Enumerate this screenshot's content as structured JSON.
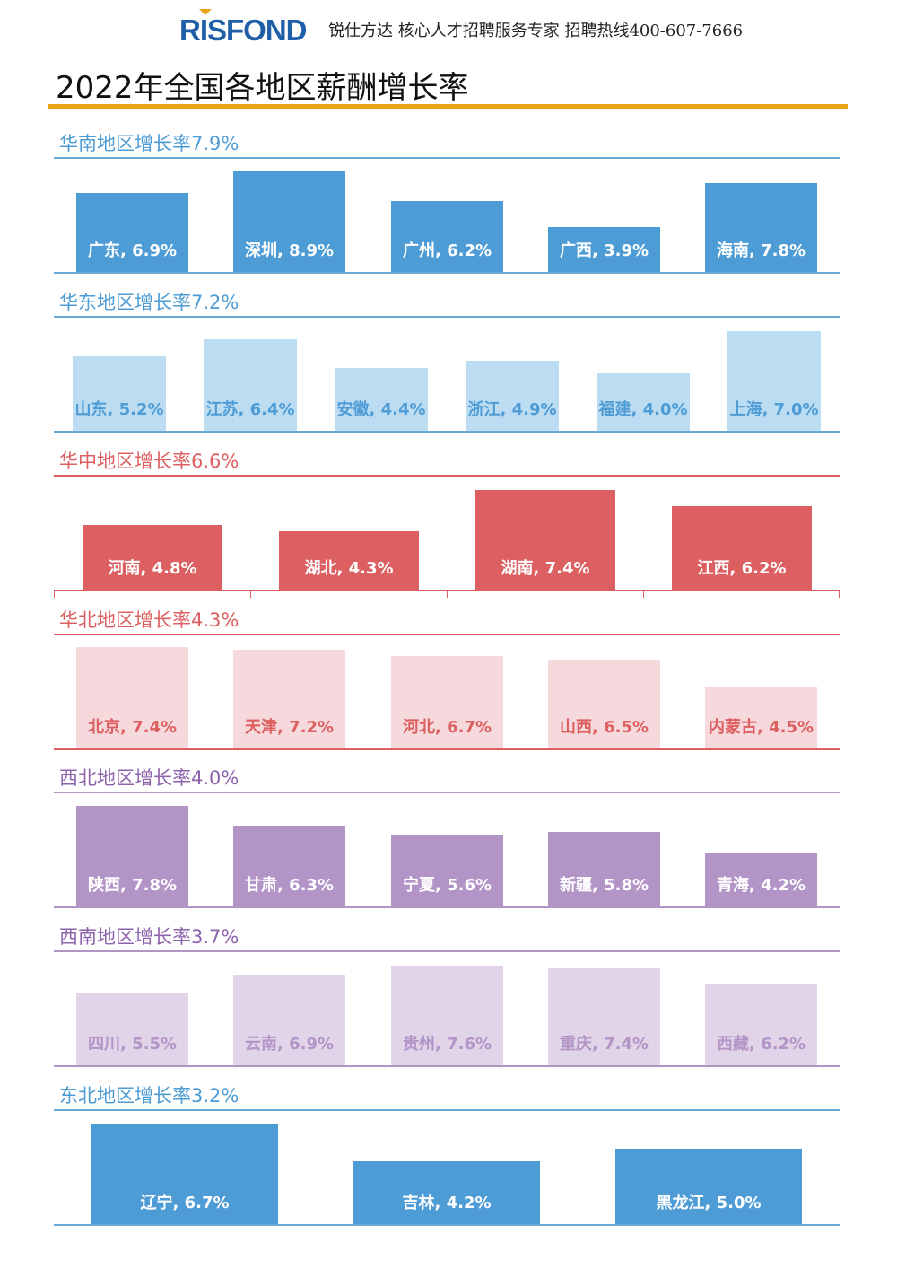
{
  "header": {
    "logo_text": "RISFOND",
    "tagline": "锐仕方达 核心人才招聘服务专家 招聘热线400-607-7666"
  },
  "page_title": "2022年全国各地区薪酬增长率",
  "colors": {
    "title_rule": "#e8a317",
    "logo": "#1f5fa8"
  },
  "chart_data": [
    {
      "type": "bar",
      "title": "华南地区增长率7.9%",
      "categories": [
        "广东",
        "深圳",
        "广州",
        "广西",
        "海南"
      ],
      "values": [
        6.9,
        8.9,
        6.2,
        3.9,
        7.8
      ],
      "labels": [
        "广东, 6.9%",
        "深圳, 8.9%",
        "广州, 6.2%",
        "广西, 3.9%",
        "海南, 7.8%"
      ],
      "unit": "%",
      "scale": 12.7,
      "bar_color": "#4e9cd5",
      "label_color": "#ffffff",
      "title_color": "#4e9cd5",
      "rule_color": "#6aa9d6",
      "ticks": false,
      "grid": false
    },
    {
      "type": "bar",
      "title": "华东地区增长率7.2%",
      "categories": [
        "山东",
        "江苏",
        "安徽",
        "浙江",
        "福建",
        "上海"
      ],
      "values": [
        5.2,
        6.4,
        4.4,
        4.9,
        4.0,
        7.0
      ],
      "labels": [
        "山东, 5.2%",
        "江苏, 6.4%",
        "安徽, 4.4%",
        "浙江, 4.9%",
        "福建, 4.0%",
        "上海, 7.0%"
      ],
      "unit": "%",
      "scale": 15.9,
      "bar_color": "#bcdcf2",
      "label_color": "#4e9cd5",
      "title_color": "#4e9cd5",
      "rule_color": "#6aa9d6",
      "ticks": false,
      "grid": false
    },
    {
      "type": "bar",
      "title": "华中地区增长率6.6%",
      "categories": [
        "河南",
        "湖北",
        "湖南",
        "江西"
      ],
      "values": [
        4.8,
        4.3,
        7.4,
        6.2
      ],
      "labels": [
        "河南, 4.8%",
        "湖北, 4.3%",
        "湖南, 7.4%",
        "江西, 6.2%"
      ],
      "unit": "%",
      "scale": 15.0,
      "bar_color": "#dc6061",
      "label_color": "#ffffff",
      "title_color": "#dc6061",
      "rule_color": "#dc6061",
      "ticks": true,
      "grid": false
    },
    {
      "type": "bar",
      "title": "华北地区增长率4.3%",
      "categories": [
        "北京",
        "天津",
        "河北",
        "山西",
        "内蒙古"
      ],
      "values": [
        7.4,
        7.2,
        6.7,
        6.5,
        4.5
      ],
      "labels": [
        "北京, 7.4%",
        "天津, 7.2%",
        "河北, 6.7%",
        "山西, 6.5%",
        "内蒙古, 4.5%"
      ],
      "unit": "%",
      "scale": 15.3,
      "bar_color": "#f6d9dc",
      "label_color": "#dc6061",
      "title_color": "#dc6061",
      "rule_color": "#dc6061",
      "ticks": false,
      "grid": false
    },
    {
      "type": "bar",
      "title": "西北地区增长率4.0%",
      "categories": [
        "陕西",
        "甘肃",
        "宁夏",
        "新疆",
        "青海"
      ],
      "values": [
        7.8,
        6.3,
        5.6,
        5.8,
        4.2
      ],
      "labels": [
        "陕西, 7.8%",
        "甘肃, 6.3%",
        "宁夏, 5.6%",
        "新疆, 5.8%",
        "青海, 4.2%"
      ],
      "unit": "%",
      "scale": 14.3,
      "bar_color": "#b294c7",
      "label_color": "#ffffff",
      "title_color": "#8e63ad",
      "rule_color": "#b294c7",
      "ticks": false,
      "grid": false
    },
    {
      "type": "bar",
      "title": "西南地区增长率3.7%",
      "categories": [
        "四川",
        "云南",
        "贵州",
        "重庆",
        "西藏"
      ],
      "values": [
        5.5,
        6.9,
        7.6,
        7.4,
        6.2
      ],
      "labels": [
        "四川, 5.5%",
        "云南, 6.9%",
        "贵州, 7.6%",
        "重庆, 7.4%",
        "西藏, 6.2%"
      ],
      "unit": "%",
      "scale": 14.6,
      "bar_color": "#e1d4e9",
      "label_color": "#b294c7",
      "title_color": "#8e63ad",
      "rule_color": "#b294c7",
      "ticks": false,
      "grid": false
    },
    {
      "type": "bar",
      "title": "东北地区增长率3.2%",
      "categories": [
        "辽宁",
        "吉林",
        "黑龙江"
      ],
      "values": [
        6.7,
        4.2,
        5.0
      ],
      "labels": [
        "辽宁, 6.7%",
        "吉林, 4.2%",
        "黑龙江, 5.0%"
      ],
      "unit": "%",
      "scale": 16.7,
      "bar_color": "#4e9cd5",
      "label_color": "#ffffff",
      "title_color": "#4e9cd5",
      "rule_color": "#6aa9d6",
      "ticks": false,
      "grid": false
    }
  ]
}
